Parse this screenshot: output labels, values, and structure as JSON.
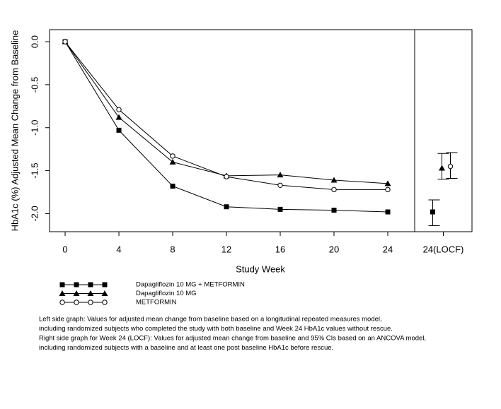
{
  "chart_data": {
    "type": "line",
    "x_label": "Study Week",
    "y_label": "HbA1c (%) Adjusted Mean Change from Baseline",
    "x": [
      0,
      4,
      8,
      12,
      16,
      20,
      24
    ],
    "xlim": [
      -1.16,
      26
    ],
    "xticks": [
      0,
      4,
      8,
      12,
      16,
      20,
      24
    ],
    "ylim": [
      -2.21,
      0.14
    ],
    "yticks": [
      {
        "value": 0,
        "label": "0.0"
      },
      -0.5,
      {
        "value": -1,
        "label": "-1.0"
      },
      -1.5,
      {
        "value": -2,
        "label": "-2.0"
      }
    ],
    "locf_category": "24(LOCF)",
    "series": [
      {
        "name": "Dapagliflozin 10 MG + METFORMIN",
        "marker": "square",
        "color": "#000000",
        "values": [
          0,
          -1.03,
          -1.68,
          -1.92,
          -1.95,
          -1.96,
          -1.98
        ],
        "locf_value": -1.98,
        "locf_lower": -2.14,
        "locf_upper": -1.84
      },
      {
        "name": "Dapagliflozin 10 MG",
        "marker": "triangle",
        "color": "#000000",
        "values": [
          0,
          -0.88,
          -1.4,
          -1.56,
          -1.55,
          -1.61,
          -1.65
        ],
        "locf_value": -1.47,
        "locf_lower": -1.6,
        "locf_upper": -1.3
      },
      {
        "name": "METFORMIN",
        "marker": "circle",
        "color": "#000000",
        "values": [
          0,
          -0.79,
          -1.33,
          -1.57,
          -1.67,
          -1.72,
          -1.72
        ],
        "locf_value": -1.45,
        "locf_lower": -1.59,
        "locf_upper": -1.29
      }
    ],
    "notes": [
      "Left side graph: Values for adjusted mean change from baseline based on a longitudinal repeated measures model,",
      "including randomized subjects who completed the study with both baseline and Week 24 HbA1c values without rescue.",
      "Right side graph for Week 24 (LOCF): Values for adjusted mean change from baseline and 95% CIs based on an ANCOVA model,",
      "including randomized subjects with a baseline and at least one post baseline HbA1c before rescue."
    ]
  }
}
